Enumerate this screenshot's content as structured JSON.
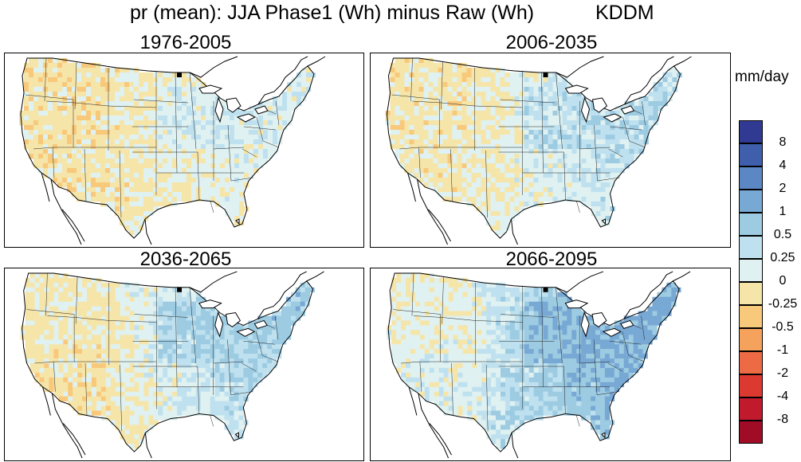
{
  "figure": {
    "title": "pr (mean): JJA Phase1 (Wh) minus Raw (Wh)",
    "model": "KDDM"
  },
  "panels": [
    {
      "title": "1976-2005",
      "east_level": 0.18,
      "west_level": -0.12,
      "midwest_level": 0.12,
      "south_level": -0.08
    },
    {
      "title": "2006-2035",
      "east_level": 0.45,
      "west_level": -0.1,
      "midwest_level": 0.3,
      "south_level": 0.05
    },
    {
      "title": "2036-2065",
      "east_level": 0.7,
      "west_level": -0.05,
      "midwest_level": 0.5,
      "south_level": -0.35
    },
    {
      "title": "2066-2095",
      "east_level": 1.2,
      "west_level": 0.05,
      "midwest_level": 1.0,
      "south_level": 0.45
    }
  ],
  "colorbar": {
    "unit": "mm/day",
    "labels": [
      "8",
      "4",
      "2",
      "1",
      "0.5",
      "0.25",
      "0",
      "-0.25",
      "-0.5",
      "-1",
      "-2",
      "-4",
      "-8"
    ],
    "colors": [
      "#303a93",
      "#3f5fad",
      "#5b88c4",
      "#78a8d4",
      "#9ccbe2",
      "#bfe1ef",
      "#dff1f1",
      "#f6e5a9",
      "#f8c97b",
      "#f5a35c",
      "#ec6b45",
      "#dc3a30",
      "#c11a2c",
      "#a00c26"
    ]
  }
}
